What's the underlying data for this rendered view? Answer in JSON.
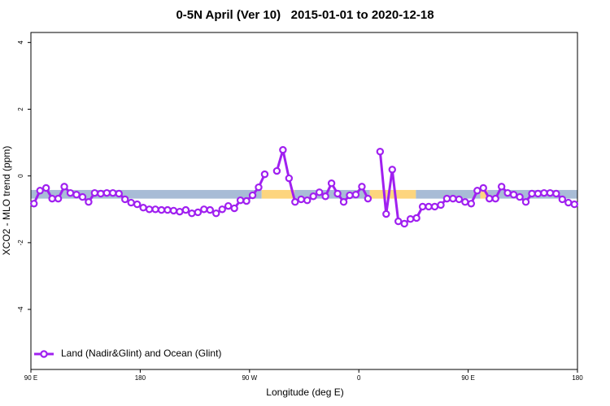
{
  "chart_data": {
    "type": "line",
    "title": "0-5N April (Ver 10)   2015-01-01 to 2020-12-18",
    "x_label": "Longitude (deg E)",
    "y_label": "XCO2 - MLO trend (ppm)",
    "xlim": [
      90,
      540
    ],
    "ylim": [
      -5.8,
      4.3
    ],
    "xticks": [
      {
        "value": 90,
        "label": "90 E"
      },
      180,
      {
        "value": 270,
        "label": "90 W"
      },
      {
        "value": 360,
        "label": "0"
      },
      {
        "value": 450,
        "label": "90 E"
      },
      {
        "value": 540,
        "label": "180"
      }
    ],
    "yticks": [
      -4,
      -2,
      0,
      2,
      4
    ],
    "grid": false,
    "legend": "bottom-left",
    "band": {
      "ylim": [
        -0.68,
        -0.42
      ],
      "segments": [
        {
          "xlim": [
            90,
            280
          ],
          "color": "#a8bcd6"
        },
        {
          "xlim": [
            280,
            307
          ],
          "color": "#fdd57e"
        },
        {
          "xlim": [
            307,
            369
          ],
          "color": "#a8bcd6"
        },
        {
          "xlim": [
            369,
            407
          ],
          "color": "#fdd57e"
        },
        {
          "xlim": [
            407,
            460
          ],
          "color": "#a8bcd6"
        },
        {
          "xlim": [
            460,
            466
          ],
          "color": "#fdd57e"
        },
        {
          "xlim": [
            466,
            540
          ],
          "color": "#a8bcd6"
        }
      ]
    },
    "x": [
      92.5,
      97.5,
      102.5,
      107.5,
      112.5,
      117.5,
      122.5,
      127.5,
      132.5,
      137.5,
      142.5,
      147.5,
      152.5,
      157.5,
      162.5,
      167.5,
      172.5,
      177.5,
      182.5,
      187.5,
      192.5,
      197.5,
      202.5,
      207.5,
      212.5,
      217.5,
      222.5,
      227.5,
      232.5,
      237.5,
      242.5,
      247.5,
      252.5,
      257.5,
      262.5,
      267.5,
      272.5,
      277.5,
      282.5,
      287.5,
      292.5,
      297.5,
      302.5,
      307.5,
      312.5,
      317.5,
      322.5,
      327.5,
      332.5,
      337.5,
      342.5,
      347.5,
      352.5,
      357.5,
      362.5,
      367.5,
      372.5,
      377.5,
      382.5,
      387.5,
      392.5,
      397.5,
      402.5,
      407.5,
      412.5,
      417.5,
      422.5,
      427.5,
      432.5,
      437.5,
      442.5,
      447.5,
      452.5,
      457.5,
      462.5,
      467.5,
      472.5,
      477.5,
      482.5,
      487.5,
      492.5,
      497.5,
      502.5,
      507.5,
      512.5,
      517.5,
      522.5,
      527.5,
      532.5,
      537.5
    ],
    "series": [
      {
        "name": "Land (Nadir&Glint) and Ocean (Glint)",
        "color": "#a020f0",
        "values": [
          -0.83,
          -0.44,
          -0.36,
          -0.68,
          -0.68,
          -0.32,
          -0.51,
          -0.56,
          -0.63,
          -0.78,
          -0.51,
          -0.53,
          -0.51,
          -0.51,
          -0.53,
          -0.7,
          -0.8,
          -0.85,
          -0.95,
          -1.0,
          -1.0,
          -1.02,
          -1.02,
          -1.04,
          -1.07,
          -1.02,
          -1.12,
          -1.09,
          -1.0,
          -1.02,
          -1.12,
          -1.0,
          -0.9,
          -0.97,
          -0.73,
          -0.75,
          -0.58,
          -0.34,
          0.05,
          null,
          0.15,
          0.78,
          -0.07,
          -0.78,
          -0.7,
          -0.73,
          -0.61,
          -0.49,
          -0.61,
          -0.22,
          -0.53,
          -0.78,
          -0.58,
          -0.56,
          -0.32,
          -0.68,
          null,
          0.73,
          -1.14,
          0.19,
          -1.36,
          -1.43,
          -1.29,
          -1.26,
          -0.92,
          -0.92,
          -0.92,
          -0.87,
          -0.68,
          -0.68,
          -0.7,
          -0.78,
          -0.83,
          -0.44,
          -0.36,
          -0.68,
          -0.68,
          -0.32,
          -0.51,
          -0.56,
          -0.63,
          -0.78,
          -0.53,
          -0.53,
          -0.51,
          -0.51,
          -0.53,
          -0.7,
          -0.8,
          -0.85
        ]
      }
    ]
  }
}
